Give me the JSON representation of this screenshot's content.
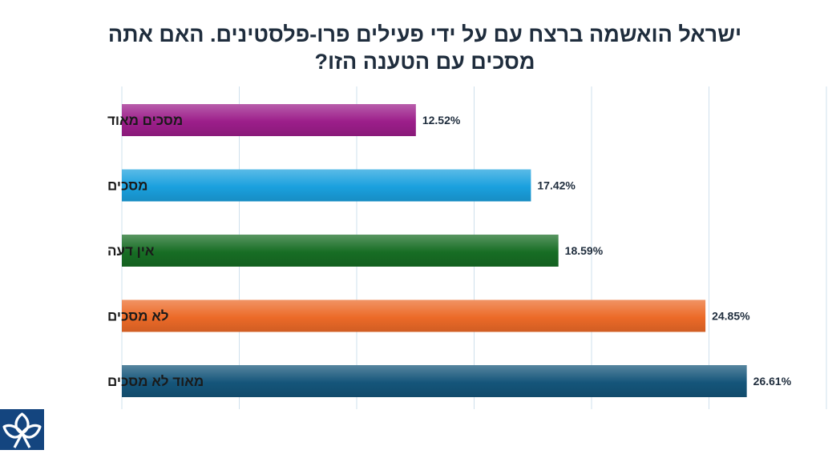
{
  "chart_data": {
    "type": "bar",
    "orientation": "horizontal",
    "title": "ישראל הואשמה ברצח עם על ידי פעילים פרו-פלסטינים. האם אתה מסכים עם הטענה הזו?",
    "categories": [
      "מסכים מאוד",
      "מסכים",
      "אין דעה",
      "לא מסכים",
      "מאוד לא מסכים"
    ],
    "values": [
      12.52,
      17.42,
      18.59,
      24.85,
      26.61
    ],
    "value_labels": [
      "12.52%",
      "17.42%",
      "18.59%",
      "24.85%",
      "26.61%"
    ],
    "colors": [
      "#9c1e8a",
      "#1aa0de",
      "#176d24",
      "#ec6a28",
      "#14557a"
    ],
    "xlim": [
      0,
      30
    ],
    "gridlines": true,
    "xlabel": "",
    "ylabel": ""
  },
  "logo": {
    "icon": "trefoil-logo-icon",
    "color": "#14457f"
  }
}
